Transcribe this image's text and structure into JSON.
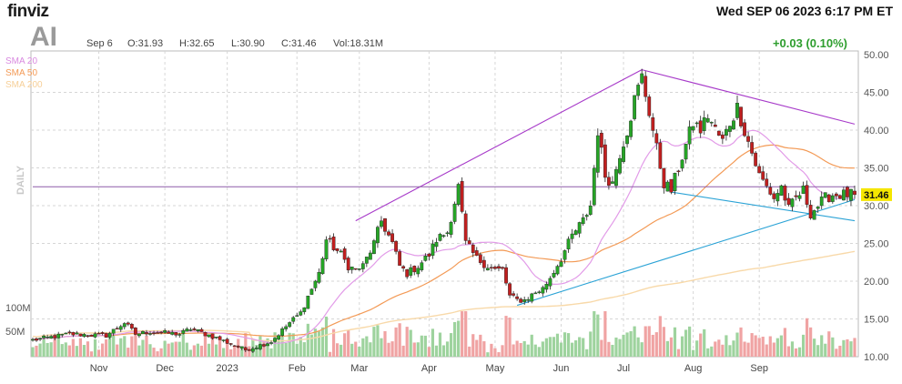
{
  "header": {
    "logo": "finviz",
    "datetime": "Wed SEP 06 2023 6:17 PM ET",
    "ticker": "AI",
    "quote_date": "Sep 6",
    "open": "O:31.93",
    "high": "H:32.65",
    "low": "L:30.90",
    "close": "C:31.46",
    "volume": "Vol:18.31M",
    "change": "+0.03 (0.10%)"
  },
  "legend": {
    "sma20": "SMA 20",
    "sma50": "SMA 50",
    "sma200": "SMA 200"
  },
  "side_label": "DAILY",
  "colors": {
    "up": "#26a526",
    "down": "#c11f1f",
    "up_volume": "#9ed39e",
    "down_volume": "#f0a3a3",
    "sma20": "#e29be8",
    "sma50": "#f39a56",
    "sma200": "#f8d9a9",
    "trend_purple": "#a73ac9",
    "trend_blue": "#2ba3d6",
    "price_line": "#8e5ca8",
    "grid": "#d6d6d6"
  },
  "chart_data": {
    "type": "candlestick",
    "y_axis": {
      "min": 10,
      "max": 50,
      "ticks": [
        "50.00",
        "45.00",
        "40.00",
        "35.00",
        "30.00",
        "25.00",
        "20.00",
        "15.00",
        "10.00"
      ],
      "side": "right"
    },
    "x_axis_labels": [
      "Nov",
      "Dec",
      "2023",
      "Feb",
      "Mar",
      "Apr",
      "May",
      "Jun",
      "Jul",
      "Aug",
      "Sep"
    ],
    "volume_axis_labels": [
      "100M",
      "50M"
    ],
    "last_price_label": "31.46",
    "close_anchors": [
      [
        0,
        12.2
      ],
      [
        10,
        13.0
      ],
      [
        20,
        12.8
      ],
      [
        25,
        14.5
      ],
      [
        28,
        13.0
      ],
      [
        32,
        13.3
      ],
      [
        40,
        13.0
      ],
      [
        43,
        13.7
      ],
      [
        50,
        12.5
      ],
      [
        55,
        11.5
      ],
      [
        58,
        10.9
      ],
      [
        65,
        12.0
      ],
      [
        70,
        14.5
      ],
      [
        73,
        15.8
      ],
      [
        75,
        18.0
      ],
      [
        78,
        21.0
      ],
      [
        80,
        25.5
      ],
      [
        82,
        24.5
      ],
      [
        84,
        23.5
      ],
      [
        86,
        22.0
      ],
      [
        88,
        21.5
      ],
      [
        90,
        22.0
      ],
      [
        93,
        25.0
      ],
      [
        95,
        28.0
      ],
      [
        98,
        25.0
      ],
      [
        100,
        22.0
      ],
      [
        102,
        21.0
      ],
      [
        105,
        22.0
      ],
      [
        108,
        23.5
      ],
      [
        110,
        25.5
      ],
      [
        113,
        26.5
      ],
      [
        116,
        32.5
      ],
      [
        118,
        25.0
      ],
      [
        121,
        23.0
      ],
      [
        124,
        22.0
      ],
      [
        126,
        21.5
      ],
      [
        128,
        21.5
      ],
      [
        130,
        18.0
      ],
      [
        132,
        17.5
      ],
      [
        134,
        17.5
      ],
      [
        137,
        18.5
      ],
      [
        139,
        19.0
      ],
      [
        141,
        20.5
      ],
      [
        144,
        23.0
      ],
      [
        147,
        26.0
      ],
      [
        150,
        28.0
      ],
      [
        152,
        30.0
      ],
      [
        154,
        40.0
      ],
      [
        156,
        34.0
      ],
      [
        158,
        33.0
      ],
      [
        160,
        37.0
      ],
      [
        162,
        40.0
      ],
      [
        164,
        44.0
      ],
      [
        166,
        47.0
      ],
      [
        168,
        42.5
      ],
      [
        170,
        37.5
      ],
      [
        172,
        33.0
      ],
      [
        174,
        32.0
      ],
      [
        176,
        35.0
      ],
      [
        178,
        38.0
      ],
      [
        180,
        41.0
      ],
      [
        182,
        40.0
      ],
      [
        184,
        42.0
      ],
      [
        186,
        40.0
      ],
      [
        188,
        38.5
      ],
      [
        190,
        41.0
      ],
      [
        192,
        43.0
      ],
      [
        194,
        40.0
      ],
      [
        196,
        37.0
      ],
      [
        198,
        34.0
      ],
      [
        200,
        32.5
      ],
      [
        202,
        31.0
      ],
      [
        204,
        32.5
      ],
      [
        206,
        29.5
      ],
      [
        208,
        31.0
      ],
      [
        210,
        32.0
      ],
      [
        212,
        29.0
      ],
      [
        214,
        30.0
      ],
      [
        216,
        31.0
      ],
      [
        218,
        31.46
      ]
    ],
    "x_axis_label_positions": [
      18,
      36,
      53,
      72,
      89,
      108,
      126,
      144,
      161,
      180,
      198
    ],
    "trendlines": [
      {
        "color": "purple",
        "from": [
          88,
          28.0
        ],
        "to": [
          166,
          48.0
        ]
      },
      {
        "color": "purple",
        "from": [
          166,
          48.0
        ],
        "to": [
          224,
          40.8
        ]
      },
      {
        "color": "blue",
        "from": [
          132,
          16.8
        ],
        "to": [
          224,
          30.8
        ]
      },
      {
        "color": "blue",
        "from": [
          174,
          31.8
        ],
        "to": [
          224,
          28.0
        ]
      },
      {
        "color": "price",
        "from": [
          0,
          32.5
        ],
        "to": [
          224,
          32.5
        ]
      }
    ]
  }
}
